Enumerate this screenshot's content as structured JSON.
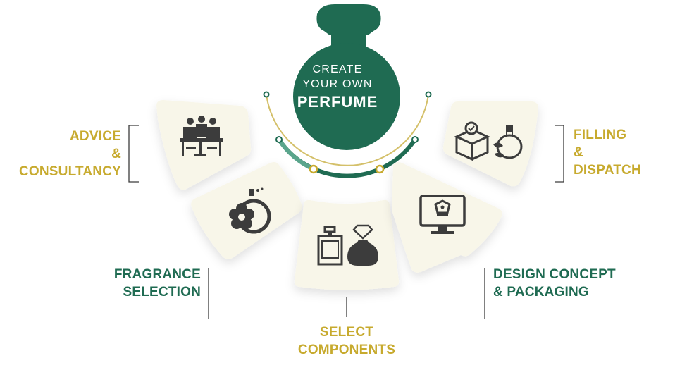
{
  "center": {
    "line1": "CREATE",
    "line2": "YOUR OWN",
    "line3": "PERFUME"
  },
  "steps": [
    {
      "id": "advice",
      "lines": [
        "ADVICE",
        "&",
        "CONSULTANCY"
      ],
      "icon": "consultation-meeting-icon",
      "color": "#c7aa2e"
    },
    {
      "id": "fragrance",
      "lines": [
        "FRAGRANCE",
        "SELECTION"
      ],
      "icon": "perfume-bottle-flower-icon",
      "color": "#1f6b52"
    },
    {
      "id": "components",
      "lines": [
        "SELECT",
        "COMPONENTS"
      ],
      "icon": "perfume-bottles-icon",
      "color": "#c7aa2e"
    },
    {
      "id": "design",
      "lines": [
        "DESIGN CONCEPT",
        "& PACKAGING"
      ],
      "icon": "monitor-design-icon",
      "color": "#1f6b52"
    },
    {
      "id": "filling",
      "lines": [
        "FILLING",
        "&",
        "DISPATCH"
      ],
      "icon": "box-and-bottle-icon",
      "color": "#c7aa2e"
    }
  ],
  "colors": {
    "primary_green": "#1f6b52",
    "accent_gold": "#c7aa2e",
    "card_bg": "#f8f6e9",
    "icon_dark": "#3c3c3c"
  }
}
